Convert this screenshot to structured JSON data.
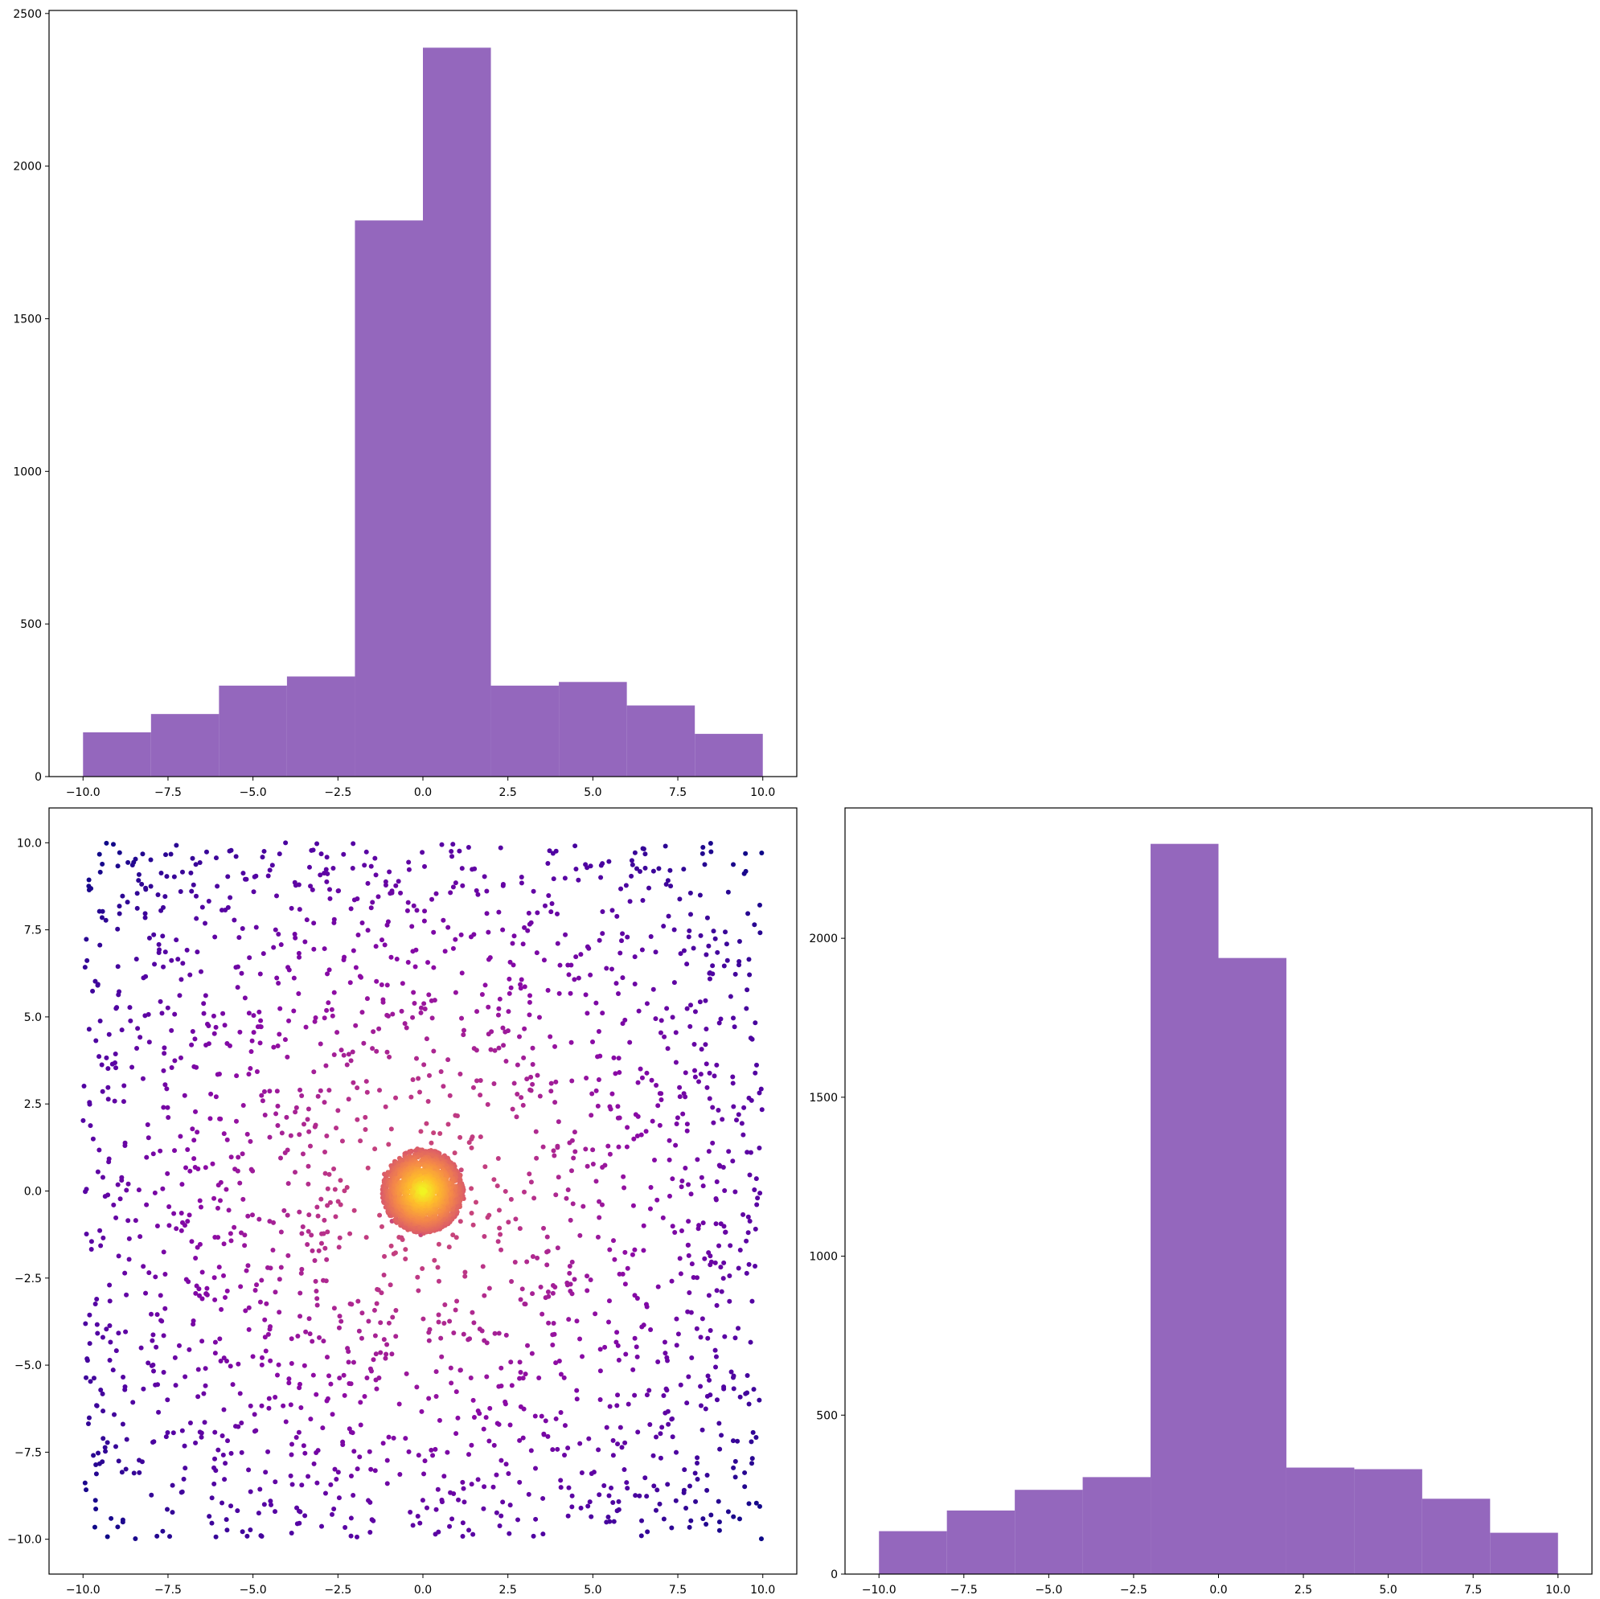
{
  "figure": {
    "background": "#ffffff",
    "layout": "2x2 grid; top-right panel empty"
  },
  "chart_data": [
    {
      "panel": "top-left",
      "type": "bar",
      "subtype": "histogram",
      "bar_color": "#9467bd",
      "bin_edges": [
        -10,
        -8,
        -6,
        -4,
        -2,
        0,
        2,
        4,
        6,
        8,
        10
      ],
      "values": [
        145,
        205,
        298,
        328,
        1822,
        2388,
        298,
        310,
        233,
        140
      ],
      "xlim": [
        -11,
        11
      ],
      "ylim": [
        0,
        2510
      ],
      "xticks": [
        -10.0,
        -7.5,
        -5.0,
        -2.5,
        0.0,
        2.5,
        5.0,
        7.5,
        10.0
      ],
      "xtick_labels": [
        "−10.0",
        "−7.5",
        "−5.0",
        "−2.5",
        "0.0",
        "2.5",
        "5.0",
        "7.5",
        "10.0"
      ],
      "yticks": [
        0,
        500,
        1000,
        1500,
        2000,
        2500
      ],
      "ytick_labels": [
        "0",
        "500",
        "1000",
        "1500",
        "2000",
        "2500"
      ],
      "title": "",
      "xlabel": "",
      "ylabel": "",
      "grid": false
    },
    {
      "panel": "bottom-left",
      "type": "scatter",
      "colormap": "plasma",
      "color_encoding": "distance from center (purple far, yellow center)",
      "cluster": {
        "center": [
          0,
          0
        ],
        "radius": 1.2
      },
      "point_summary": "~2000 points uniformly spread over [-10,10] x [-10,10] plus a dense cluster near (0,0)",
      "xlim": [
        -11,
        11
      ],
      "ylim": [
        -11,
        11
      ],
      "xticks": [
        -10.0,
        -7.5,
        -5.0,
        -2.5,
        0.0,
        2.5,
        5.0,
        7.5,
        10.0
      ],
      "xtick_labels": [
        "−10.0",
        "−7.5",
        "−5.0",
        "−2.5",
        "0.0",
        "2.5",
        "5.0",
        "7.5",
        "10.0"
      ],
      "yticks": [
        -10.0,
        -7.5,
        -5.0,
        -2.5,
        0.0,
        2.5,
        5.0,
        7.5,
        10.0
      ],
      "ytick_labels": [
        "−10.0",
        "−7.5",
        "−5.0",
        "−2.5",
        "0.0",
        "2.5",
        "5.0",
        "7.5",
        "10.0"
      ],
      "title": "",
      "xlabel": "",
      "ylabel": "",
      "grid": false
    },
    {
      "panel": "bottom-right",
      "type": "bar",
      "subtype": "histogram",
      "bar_color": "#9467bd",
      "bin_edges": [
        -10,
        -8,
        -6,
        -4,
        -2,
        0,
        2,
        4,
        6,
        8,
        10
      ],
      "values": [
        135,
        200,
        265,
        305,
        2297,
        1938,
        335,
        330,
        237,
        130
      ],
      "xlim": [
        -11,
        11
      ],
      "ylim": [
        0,
        2410
      ],
      "xticks": [
        -10.0,
        -7.5,
        -5.0,
        -2.5,
        0.0,
        2.5,
        5.0,
        7.5,
        10.0
      ],
      "xtick_labels": [
        "−10.0",
        "−7.5",
        "−5.0",
        "−2.5",
        "0.0",
        "2.5",
        "5.0",
        "7.5",
        "10.0"
      ],
      "yticks": [
        0,
        500,
        1000,
        1500,
        2000
      ],
      "ytick_labels": [
        "0",
        "500",
        "1000",
        "1500",
        "2000"
      ],
      "title": "",
      "xlabel": "",
      "ylabel": "",
      "grid": false
    }
  ]
}
